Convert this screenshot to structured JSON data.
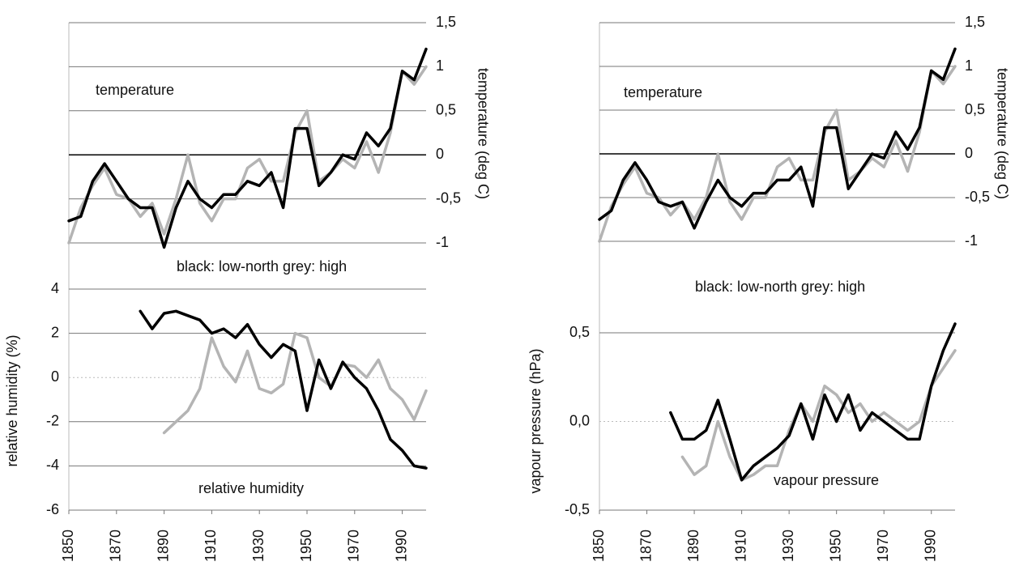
{
  "chart_data": [
    {
      "type": "line",
      "ylabel": "relative humidity (%)",
      "y2label": "temperature (deg C)",
      "annotations": [
        "temperature",
        "black: low-north grey: high",
        "relative humidity"
      ],
      "x": [
        1850,
        1855,
        1860,
        1865,
        1870,
        1875,
        1880,
        1885,
        1890,
        1895,
        1900,
        1905,
        1910,
        1915,
        1920,
        1925,
        1930,
        1935,
        1940,
        1945,
        1950,
        1955,
        1960,
        1965,
        1970,
        1975,
        1980,
        1985,
        1990,
        1995,
        2000
      ],
      "xlim": [
        1850,
        2000
      ],
      "xticks": [
        1850,
        1870,
        1890,
        1910,
        1930,
        1950,
        1970,
        1990
      ],
      "ylim": [
        -6,
        4
      ],
      "yticks": [
        -6,
        -4,
        -2,
        0,
        2,
        4
      ],
      "y2lim": [
        -1,
        1.5
      ],
      "y2ticks": [
        -1,
        {
          "value": -0.5,
          "label": "-0,5"
        },
        0,
        {
          "value": 0.5,
          "label": "0,5"
        },
        1,
        {
          "value": 1.5,
          "label": "1,5"
        }
      ],
      "grid": true,
      "series": [
        {
          "color": "#000000",
          "axis": "y2",
          "values": [
            -0.75,
            -0.7,
            -0.3,
            -0.1,
            -0.3,
            -0.5,
            -0.6,
            -0.6,
            -1.05,
            -0.6,
            -0.3,
            -0.5,
            -0.6,
            -0.45,
            -0.45,
            -0.3,
            -0.35,
            -0.2,
            -0.6,
            0.3,
            0.3,
            -0.35,
            -0.2,
            0.0,
            -0.05,
            0.25,
            0.1,
            0.3,
            0.95,
            0.85,
            1.2
          ]
        },
        {
          "color": "#b4b4b4",
          "axis": "y2",
          "values": [
            -1.0,
            -0.6,
            -0.35,
            -0.15,
            -0.45,
            -0.5,
            -0.7,
            -0.55,
            -0.9,
            -0.5,
            0.0,
            -0.55,
            -0.75,
            -0.5,
            -0.5,
            -0.15,
            -0.05,
            -0.3,
            -0.3,
            0.25,
            0.5,
            -0.3,
            -0.2,
            -0.05,
            -0.15,
            0.15,
            -0.2,
            0.25,
            0.95,
            0.8,
            1.0
          ]
        },
        {
          "color": "#000000",
          "values": [
            null,
            null,
            null,
            null,
            null,
            null,
            3.0,
            2.2,
            2.9,
            3.0,
            2.8,
            2.6,
            2.0,
            2.2,
            1.8,
            2.4,
            1.5,
            0.9,
            1.5,
            1.2,
            -1.5,
            0.8,
            -0.5,
            0.7,
            0.0,
            -0.5,
            -1.5,
            -2.8,
            -3.3,
            -4.0,
            -4.1
          ]
        },
        {
          "color": "#b4b4b4",
          "values": [
            null,
            null,
            null,
            null,
            null,
            null,
            null,
            null,
            -2.5,
            -2.0,
            -1.5,
            -0.5,
            1.8,
            0.5,
            -0.2,
            1.2,
            -0.5,
            -0.7,
            -0.3,
            2.0,
            1.8,
            0.0,
            -0.4,
            0.6,
            0.5,
            0.0,
            0.8,
            -0.5,
            -1.0,
            -1.9,
            -0.6
          ]
        }
      ]
    },
    {
      "type": "line",
      "ylabel": "vapour pressure (hPa)",
      "y2label": "temperature (deg C)",
      "annotations": [
        "temperature",
        "black: low-north grey: high",
        "vapour pressure"
      ],
      "x": [
        1850,
        1855,
        1860,
        1865,
        1870,
        1875,
        1880,
        1885,
        1890,
        1895,
        1900,
        1905,
        1910,
        1915,
        1920,
        1925,
        1930,
        1935,
        1940,
        1945,
        1950,
        1955,
        1960,
        1965,
        1970,
        1975,
        1980,
        1985,
        1990,
        1995,
        2000
      ],
      "xlim": [
        1850,
        2000
      ],
      "xticks": [
        1850,
        1870,
        1890,
        1910,
        1930,
        1950,
        1970,
        1990
      ],
      "ylim": [
        -0.5,
        0.5
      ],
      "yticks": [
        {
          "value": -0.5,
          "label": "-0,5"
        },
        {
          "value": 0,
          "label": "0,0"
        },
        {
          "value": 0.5,
          "label": "0,5"
        }
      ],
      "y2lim": [
        -1,
        1.5
      ],
      "y2ticks": [
        -1,
        {
          "value": -0.5,
          "label": "-0,5"
        },
        0,
        {
          "value": 0.5,
          "label": "0,5"
        },
        1,
        {
          "value": 1.5,
          "label": "1,5"
        }
      ],
      "grid": true,
      "series": [
        {
          "color": "#000000",
          "axis": "y2",
          "values": [
            -0.75,
            -0.65,
            -0.3,
            -0.1,
            -0.3,
            -0.55,
            -0.6,
            -0.55,
            -0.85,
            -0.55,
            -0.3,
            -0.5,
            -0.6,
            -0.45,
            -0.45,
            -0.3,
            -0.3,
            -0.15,
            -0.6,
            0.3,
            0.3,
            -0.4,
            -0.2,
            0.0,
            -0.05,
            0.25,
            0.05,
            0.3,
            0.95,
            0.85,
            1.2
          ]
        },
        {
          "color": "#b4b4b4",
          "axis": "y2",
          "values": [
            -1.0,
            -0.6,
            -0.35,
            -0.15,
            -0.45,
            -0.5,
            -0.7,
            -0.55,
            -0.75,
            -0.5,
            0.0,
            -0.55,
            -0.75,
            -0.5,
            -0.5,
            -0.15,
            -0.05,
            -0.3,
            -0.3,
            0.25,
            0.5,
            -0.3,
            -0.2,
            -0.05,
            -0.15,
            0.15,
            -0.2,
            0.25,
            0.95,
            0.8,
            1.0
          ]
        },
        {
          "color": "#000000",
          "values": [
            null,
            null,
            null,
            null,
            null,
            null,
            0.05,
            -0.1,
            -0.1,
            -0.05,
            0.12,
            -0.1,
            -0.33,
            -0.25,
            -0.2,
            -0.15,
            -0.08,
            0.1,
            -0.1,
            0.15,
            0.0,
            0.15,
            -0.05,
            0.05,
            0.0,
            -0.05,
            -0.1,
            -0.1,
            0.2,
            0.4,
            0.55
          ]
        },
        {
          "color": "#b4b4b4",
          "values": [
            null,
            null,
            null,
            null,
            null,
            null,
            null,
            -0.2,
            -0.3,
            -0.25,
            0.0,
            -0.2,
            -0.33,
            -0.3,
            -0.25,
            -0.25,
            -0.05,
            0.1,
            0.0,
            0.2,
            0.15,
            0.05,
            0.1,
            0.0,
            0.05,
            0.0,
            -0.05,
            0.0,
            0.2,
            0.3,
            0.4
          ]
        }
      ]
    }
  ]
}
